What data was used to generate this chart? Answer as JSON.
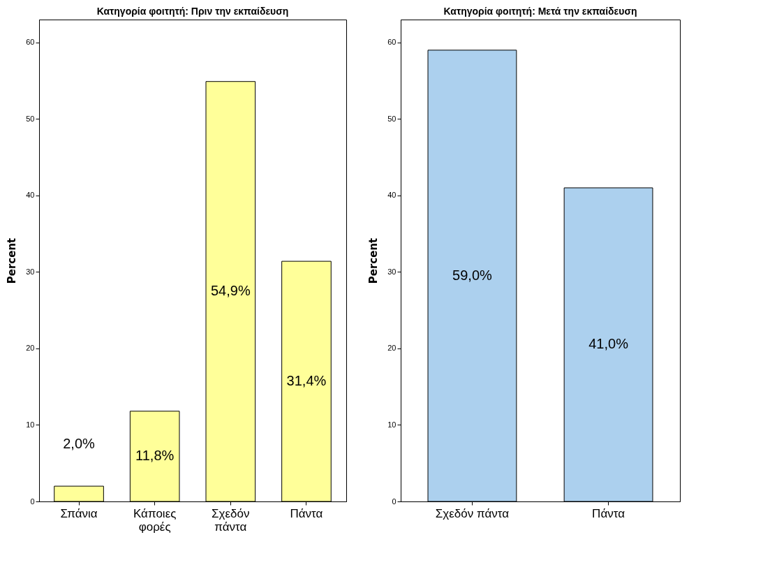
{
  "chart_data": [
    {
      "type": "bar",
      "title": "Κατηγορία φοιτητή: Πριν την εκπαίδευση",
      "ylabel": "Percent",
      "categories": [
        "Σπάνια",
        "Κάποιες φορές",
        "Σχεδόν πάντα",
        "Πάντα"
      ],
      "values": [
        2.0,
        11.8,
        54.9,
        31.4
      ],
      "value_labels": [
        "2,0%",
        "11,8%",
        "54,9%",
        "31,4%"
      ],
      "color": "#ffff99",
      "ylim": [
        0,
        63
      ],
      "yticks": [
        0,
        10,
        20,
        30,
        40,
        50,
        60
      ],
      "grid": false
    },
    {
      "type": "bar",
      "title": "Κατηγορία φοιτητή: Μετά την εκπαίδευση",
      "ylabel": "Percent",
      "categories": [
        "Σχεδόν πάντα",
        "Πάντα"
      ],
      "values": [
        59.0,
        41.0
      ],
      "value_labels": [
        "59,0%",
        "41,0%"
      ],
      "color": "#acd0ee",
      "ylim": [
        0,
        63
      ],
      "yticks": [
        0,
        10,
        20,
        30,
        40,
        50,
        60
      ],
      "grid": false
    }
  ]
}
